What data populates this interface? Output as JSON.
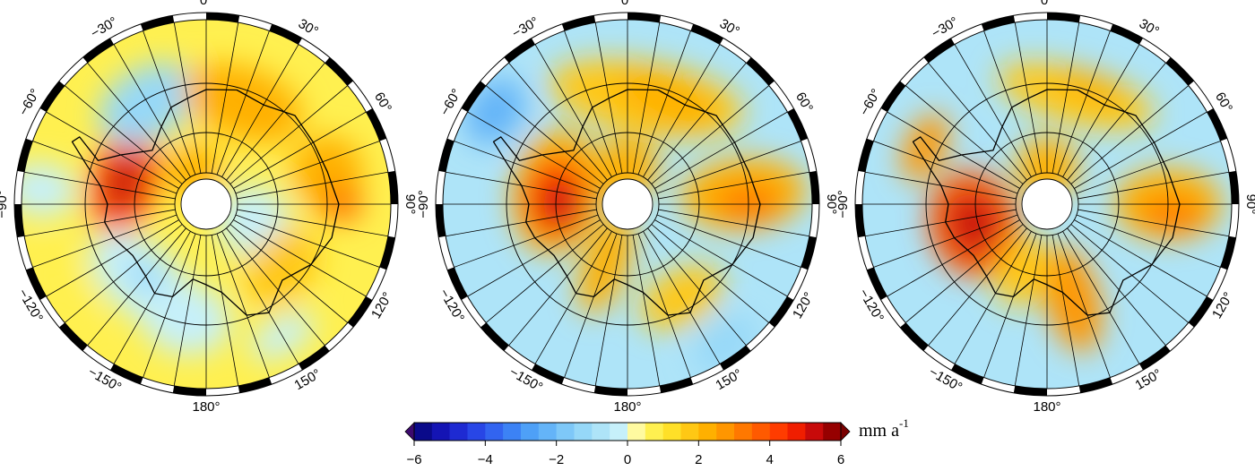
{
  "lon_labels": [
    {
      "lon": 0,
      "label": "0°"
    },
    {
      "lon": 30,
      "label": "30°"
    },
    {
      "lon": 60,
      "label": "60°"
    },
    {
      "lon": 90,
      "label": "90°"
    },
    {
      "lon": 120,
      "label": "120°"
    },
    {
      "lon": 150,
      "label": "150°"
    },
    {
      "lon": 180,
      "label": "180°"
    },
    {
      "lon": -150,
      "label": "−150°"
    },
    {
      "lon": -120,
      "label": "−120°"
    },
    {
      "lon": -90,
      "label": "−90°"
    },
    {
      "lon": -60,
      "label": "−60°"
    },
    {
      "lon": -30,
      "label": "−30°"
    }
  ],
  "colorbar": {
    "lim": [
      -6,
      6
    ],
    "ticks": [
      {
        "value": -6,
        "label": "−6"
      },
      {
        "value": -4,
        "label": "−4"
      },
      {
        "value": -2,
        "label": "−2"
      },
      0,
      2,
      4,
      6
    ],
    "colors": [
      "#0a0a8a",
      "#1414b4",
      "#1e2ad2",
      "#2846e6",
      "#3264f0",
      "#3c82f5",
      "#4ea0f7",
      "#64b4f8",
      "#7ec8f8",
      "#96d8f8",
      "#aee4f8",
      "#c6f0fa",
      "#fffaa0",
      "#fff050",
      "#ffe028",
      "#ffc814",
      "#ffb000",
      "#ff9600",
      "#ff7800",
      "#ff5a00",
      "#ff3c00",
      "#f01e00",
      "#c80a0a",
      "#960000"
    ],
    "under_color": "#3c0a6e",
    "over_color": "#7a0000",
    "unit": {
      "text": "mm a",
      "superscript": "-1"
    }
  }
}
